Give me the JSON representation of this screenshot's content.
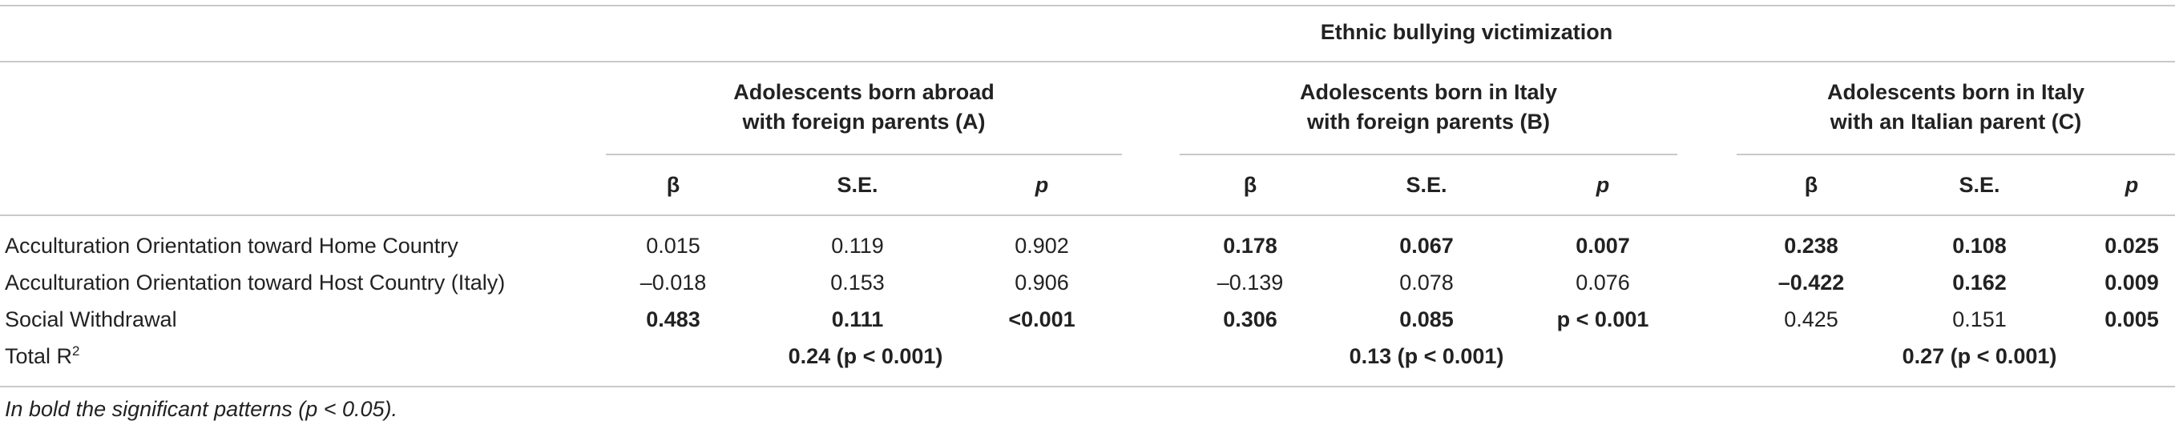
{
  "table": {
    "super_header": "Ethnic bullying victimization",
    "groups": [
      {
        "line1": "Adolescents born abroad",
        "line2": "with foreign parents (A)"
      },
      {
        "line1": "Adolescents born in Italy",
        "line2": "with foreign parents (B)"
      },
      {
        "line1": "Adolescents born in Italy",
        "line2": "with an Italian parent (C)"
      }
    ],
    "col_headers": {
      "beta": "β",
      "se": "S.E.",
      "p": "p"
    },
    "rows": [
      {
        "label": "Acculturation Orientation toward Home Country",
        "A": {
          "beta": "0.015",
          "se": "0.119",
          "p": "0.902"
        },
        "B": {
          "beta": "0.178",
          "se": "0.067",
          "p": "0.007"
        },
        "C": {
          "beta": "0.238",
          "se": "0.108",
          "p": "0.025"
        }
      },
      {
        "label": "Acculturation Orientation toward Host Country (Italy)",
        "A": {
          "beta": "–0.018",
          "se": "0.153",
          "p": "0.906"
        },
        "B": {
          "beta": "–0.139",
          "se": "0.078",
          "p": "0.076"
        },
        "C": {
          "beta": "–0.422",
          "se": "0.162",
          "p": "0.009"
        }
      },
      {
        "label": "Social Withdrawal",
        "A": {
          "beta": "0.483",
          "se": "0.111",
          "p": "<0.001"
        },
        "B": {
          "beta": "0.306",
          "se": "0.085",
          "p": "p < 0.001"
        },
        "C": {
          "beta": "0.425",
          "se": "0.151",
          "p": "0.005"
        }
      }
    ],
    "total_r2": {
      "label": "Total R",
      "sup": "2",
      "A": "0.24 (p < 0.001)",
      "B": "0.13 (p < 0.001)",
      "C": "0.27 (p < 0.001)"
    },
    "footnote": "In bold the significant patterns (p < 0.05)."
  }
}
